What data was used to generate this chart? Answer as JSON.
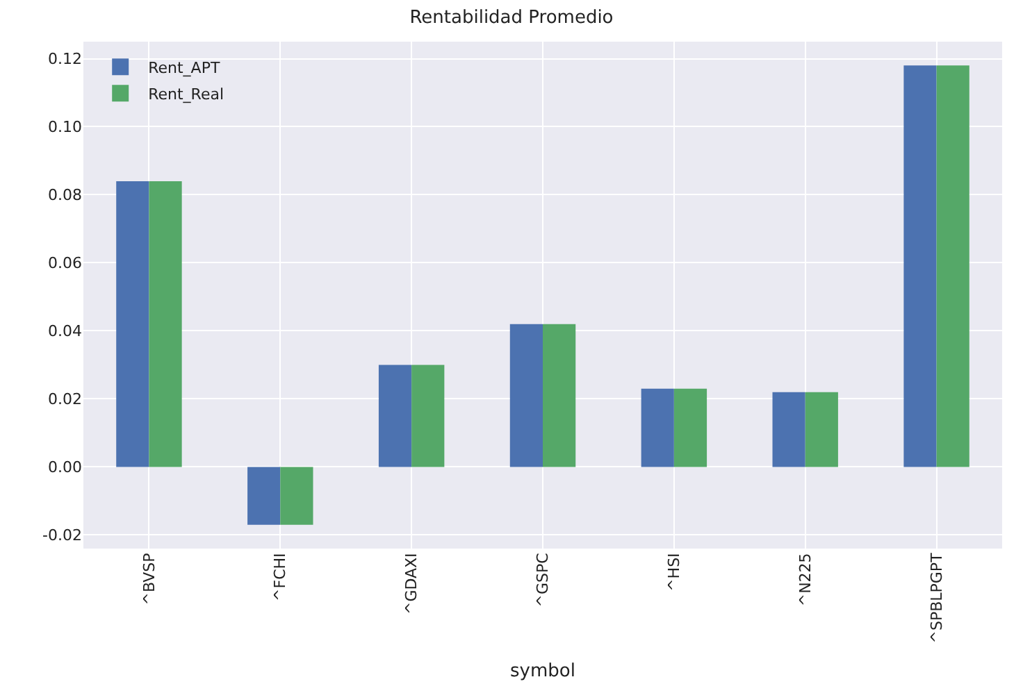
{
  "chart_data": {
    "type": "bar",
    "title": "Rentabilidad Promedio",
    "xlabel": "symbol",
    "categories": [
      "^BVSP",
      "^FCHI",
      "^GDAXI",
      "^GSPC",
      "^HSI",
      "^N225",
      "^SPBLPGPT"
    ],
    "series": [
      {
        "name": "Rent_APT",
        "color": "#4c72b0",
        "values": [
          0.084,
          -0.017,
          0.03,
          0.042,
          0.023,
          0.022,
          0.118
        ]
      },
      {
        "name": "Rent_Real",
        "color": "#55a868",
        "values": [
          0.084,
          -0.017,
          0.03,
          0.042,
          0.023,
          0.022,
          0.118
        ]
      }
    ],
    "ylim": [
      -0.024,
      0.125
    ],
    "yticks": [
      {
        "value": -0.02,
        "label": "-0.02"
      },
      {
        "value": 0,
        "label": "0.00"
      },
      {
        "value": 0.02,
        "label": "0.02"
      },
      {
        "value": 0.04,
        "label": "0.04"
      },
      {
        "value": 0.06,
        "label": "0.06"
      },
      {
        "value": 0.08,
        "label": "0.08"
      },
      {
        "value": 0.1,
        "label": "0.10"
      },
      {
        "value": 0.12,
        "label": "0.12"
      }
    ],
    "grid": true,
    "legend": "top left"
  }
}
